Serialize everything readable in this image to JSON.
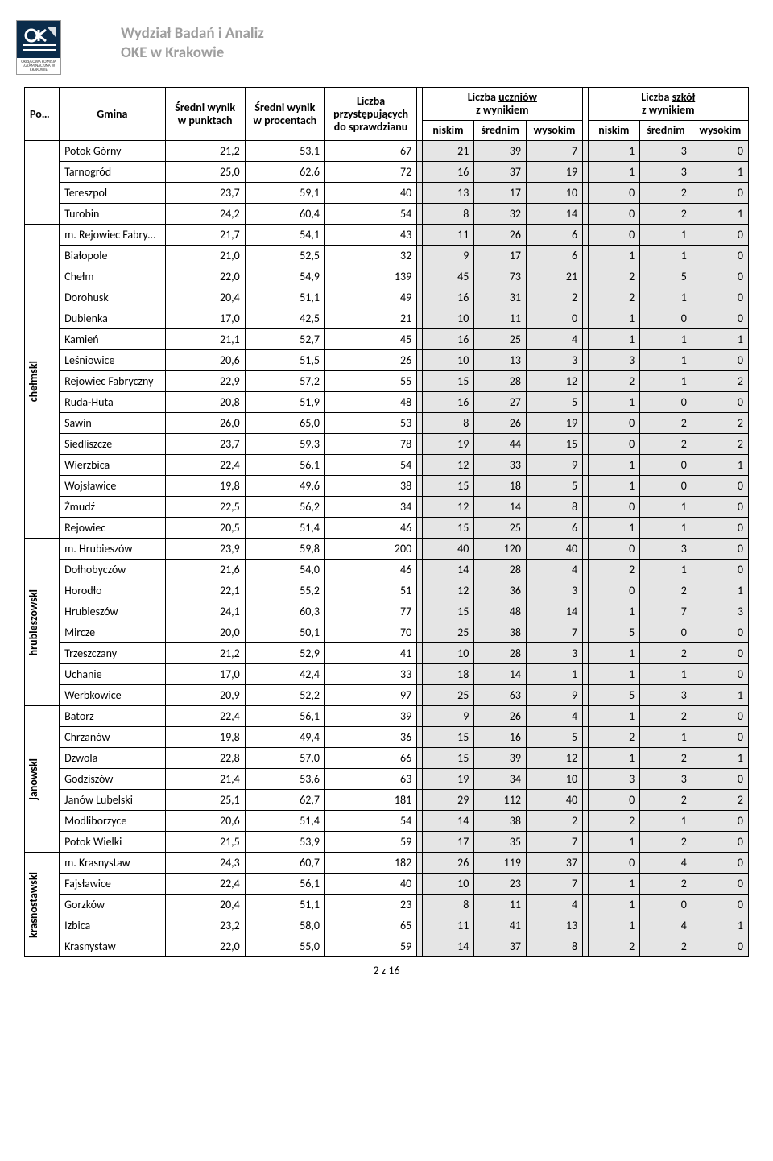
{
  "header": {
    "dept_line1": "Wydział Badań i Analiz",
    "dept_line2": "OKE w Krakowie",
    "logo_caption": "OKRĘGOWA KOMISJA EGZAMINACYJNA W KRAKOWIE"
  },
  "columns": {
    "powiat": "Powiat",
    "gmina": "Gmina",
    "avg_pts": "Średni wynik w punktach",
    "avg_pct": "Średni wynik w procentach",
    "count": "Liczba przystępujących do sprawdzianu",
    "students_group": "Liczba uczniów z wynikiem",
    "schools_group": "Liczba szkół z wynikiem",
    "low": "niskim",
    "mid": "średnim",
    "high": "wysokim"
  },
  "footer": "2 z 16",
  "colors": {
    "gray_bg": "#e5e5e5",
    "header_text_gray": "#9e9e9e",
    "logo_bg": "#0b2c4b"
  },
  "groups": [
    {
      "powiat": "",
      "rows": [
        {
          "gmina": "Potok Górny",
          "pkt": "21,2",
          "pct": "53,1",
          "n": "67",
          "u": [
            "21",
            "39",
            "7"
          ],
          "s": [
            "1",
            "3",
            "0"
          ]
        },
        {
          "gmina": "Tarnogród",
          "pkt": "25,0",
          "pct": "62,6",
          "n": "72",
          "u": [
            "16",
            "37",
            "19"
          ],
          "s": [
            "1",
            "3",
            "1"
          ]
        },
        {
          "gmina": "Tereszpol",
          "pkt": "23,7",
          "pct": "59,1",
          "n": "40",
          "u": [
            "13",
            "17",
            "10"
          ],
          "s": [
            "0",
            "2",
            "0"
          ]
        },
        {
          "gmina": "Turobin",
          "pkt": "24,2",
          "pct": "60,4",
          "n": "54",
          "u": [
            "8",
            "32",
            "14"
          ],
          "s": [
            "0",
            "2",
            "1"
          ]
        }
      ]
    },
    {
      "powiat": "chełmski",
      "rows": [
        {
          "gmina": "m. Rejowiec Fabryczny",
          "pkt": "21,7",
          "pct": "54,1",
          "n": "43",
          "u": [
            "11",
            "26",
            "6"
          ],
          "s": [
            "0",
            "1",
            "0"
          ]
        },
        {
          "gmina": "Białopole",
          "pkt": "21,0",
          "pct": "52,5",
          "n": "32",
          "u": [
            "9",
            "17",
            "6"
          ],
          "s": [
            "1",
            "1",
            "0"
          ]
        },
        {
          "gmina": "Chełm",
          "pkt": "22,0",
          "pct": "54,9",
          "n": "139",
          "u": [
            "45",
            "73",
            "21"
          ],
          "s": [
            "2",
            "5",
            "0"
          ]
        },
        {
          "gmina": "Dorohusk",
          "pkt": "20,4",
          "pct": "51,1",
          "n": "49",
          "u": [
            "16",
            "31",
            "2"
          ],
          "s": [
            "2",
            "1",
            "0"
          ]
        },
        {
          "gmina": "Dubienka",
          "pkt": "17,0",
          "pct": "42,5",
          "n": "21",
          "u": [
            "10",
            "11",
            "0"
          ],
          "s": [
            "1",
            "0",
            "0"
          ]
        },
        {
          "gmina": "Kamień",
          "pkt": "21,1",
          "pct": "52,7",
          "n": "45",
          "u": [
            "16",
            "25",
            "4"
          ],
          "s": [
            "1",
            "1",
            "1"
          ]
        },
        {
          "gmina": "Leśniowice",
          "pkt": "20,6",
          "pct": "51,5",
          "n": "26",
          "u": [
            "10",
            "13",
            "3"
          ],
          "s": [
            "3",
            "1",
            "0"
          ]
        },
        {
          "gmina": "Rejowiec Fabryczny",
          "pkt": "22,9",
          "pct": "57,2",
          "n": "55",
          "u": [
            "15",
            "28",
            "12"
          ],
          "s": [
            "2",
            "1",
            "2"
          ]
        },
        {
          "gmina": "Ruda-Huta",
          "pkt": "20,8",
          "pct": "51,9",
          "n": "48",
          "u": [
            "16",
            "27",
            "5"
          ],
          "s": [
            "1",
            "0",
            "0"
          ]
        },
        {
          "gmina": "Sawin",
          "pkt": "26,0",
          "pct": "65,0",
          "n": "53",
          "u": [
            "8",
            "26",
            "19"
          ],
          "s": [
            "0",
            "2",
            "2"
          ]
        },
        {
          "gmina": "Siedliszcze",
          "pkt": "23,7",
          "pct": "59,3",
          "n": "78",
          "u": [
            "19",
            "44",
            "15"
          ],
          "s": [
            "0",
            "2",
            "2"
          ]
        },
        {
          "gmina": "Wierzbica",
          "pkt": "22,4",
          "pct": "56,1",
          "n": "54",
          "u": [
            "12",
            "33",
            "9"
          ],
          "s": [
            "1",
            "0",
            "1"
          ]
        },
        {
          "gmina": "Wojsławice",
          "pkt": "19,8",
          "pct": "49,6",
          "n": "38",
          "u": [
            "15",
            "18",
            "5"
          ],
          "s": [
            "1",
            "0",
            "0"
          ]
        },
        {
          "gmina": "Żmudź",
          "pkt": "22,5",
          "pct": "56,2",
          "n": "34",
          "u": [
            "12",
            "14",
            "8"
          ],
          "s": [
            "0",
            "1",
            "0"
          ]
        },
        {
          "gmina": "Rejowiec",
          "pkt": "20,5",
          "pct": "51,4",
          "n": "46",
          "u": [
            "15",
            "25",
            "6"
          ],
          "s": [
            "1",
            "1",
            "0"
          ]
        }
      ]
    },
    {
      "powiat": "hrubieszowski",
      "rows": [
        {
          "gmina": "m. Hrubieszów",
          "pkt": "23,9",
          "pct": "59,8",
          "n": "200",
          "u": [
            "40",
            "120",
            "40"
          ],
          "s": [
            "0",
            "3",
            "0"
          ]
        },
        {
          "gmina": "Dołhobyczów",
          "pkt": "21,6",
          "pct": "54,0",
          "n": "46",
          "u": [
            "14",
            "28",
            "4"
          ],
          "s": [
            "2",
            "1",
            "0"
          ]
        },
        {
          "gmina": "Horodło",
          "pkt": "22,1",
          "pct": "55,2",
          "n": "51",
          "u": [
            "12",
            "36",
            "3"
          ],
          "s": [
            "0",
            "2",
            "1"
          ]
        },
        {
          "gmina": "Hrubieszów",
          "pkt": "24,1",
          "pct": "60,3",
          "n": "77",
          "u": [
            "15",
            "48",
            "14"
          ],
          "s": [
            "1",
            "7",
            "3"
          ]
        },
        {
          "gmina": "Mircze",
          "pkt": "20,0",
          "pct": "50,1",
          "n": "70",
          "u": [
            "25",
            "38",
            "7"
          ],
          "s": [
            "5",
            "0",
            "0"
          ]
        },
        {
          "gmina": "Trzeszczany",
          "pkt": "21,2",
          "pct": "52,9",
          "n": "41",
          "u": [
            "10",
            "28",
            "3"
          ],
          "s": [
            "1",
            "2",
            "0"
          ]
        },
        {
          "gmina": "Uchanie",
          "pkt": "17,0",
          "pct": "42,4",
          "n": "33",
          "u": [
            "18",
            "14",
            "1"
          ],
          "s": [
            "1",
            "1",
            "0"
          ]
        },
        {
          "gmina": "Werbkowice",
          "pkt": "20,9",
          "pct": "52,2",
          "n": "97",
          "u": [
            "25",
            "63",
            "9"
          ],
          "s": [
            "5",
            "3",
            "1"
          ]
        }
      ]
    },
    {
      "powiat": "janowski",
      "rows": [
        {
          "gmina": "Batorz",
          "pkt": "22,4",
          "pct": "56,1",
          "n": "39",
          "u": [
            "9",
            "26",
            "4"
          ],
          "s": [
            "1",
            "2",
            "0"
          ]
        },
        {
          "gmina": "Chrzanów",
          "pkt": "19,8",
          "pct": "49,4",
          "n": "36",
          "u": [
            "15",
            "16",
            "5"
          ],
          "s": [
            "2",
            "1",
            "0"
          ]
        },
        {
          "gmina": "Dzwola",
          "pkt": "22,8",
          "pct": "57,0",
          "n": "66",
          "u": [
            "15",
            "39",
            "12"
          ],
          "s": [
            "1",
            "2",
            "1"
          ]
        },
        {
          "gmina": "Godziszów",
          "pkt": "21,4",
          "pct": "53,6",
          "n": "63",
          "u": [
            "19",
            "34",
            "10"
          ],
          "s": [
            "3",
            "3",
            "0"
          ]
        },
        {
          "gmina": "Janów Lubelski",
          "pkt": "25,1",
          "pct": "62,7",
          "n": "181",
          "u": [
            "29",
            "112",
            "40"
          ],
          "s": [
            "0",
            "2",
            "2"
          ]
        },
        {
          "gmina": "Modliborzyce",
          "pkt": "20,6",
          "pct": "51,4",
          "n": "54",
          "u": [
            "14",
            "38",
            "2"
          ],
          "s": [
            "2",
            "1",
            "0"
          ]
        },
        {
          "gmina": "Potok Wielki",
          "pkt": "21,5",
          "pct": "53,9",
          "n": "59",
          "u": [
            "17",
            "35",
            "7"
          ],
          "s": [
            "1",
            "2",
            "0"
          ]
        }
      ]
    },
    {
      "powiat": "krasnostawski",
      "rows": [
        {
          "gmina": "m. Krasnystaw",
          "pkt": "24,3",
          "pct": "60,7",
          "n": "182",
          "u": [
            "26",
            "119",
            "37"
          ],
          "s": [
            "0",
            "4",
            "0"
          ]
        },
        {
          "gmina": "Fajsławice",
          "pkt": "22,4",
          "pct": "56,1",
          "n": "40",
          "u": [
            "10",
            "23",
            "7"
          ],
          "s": [
            "1",
            "2",
            "0"
          ]
        },
        {
          "gmina": "Gorzków",
          "pkt": "20,4",
          "pct": "51,1",
          "n": "23",
          "u": [
            "8",
            "11",
            "4"
          ],
          "s": [
            "1",
            "0",
            "0"
          ]
        },
        {
          "gmina": "Izbica",
          "pkt": "23,2",
          "pct": "58,0",
          "n": "65",
          "u": [
            "11",
            "41",
            "13"
          ],
          "s": [
            "1",
            "4",
            "1"
          ]
        },
        {
          "gmina": "Krasnystaw",
          "pkt": "22,0",
          "pct": "55,0",
          "n": "59",
          "u": [
            "14",
            "37",
            "8"
          ],
          "s": [
            "2",
            "2",
            "0"
          ]
        }
      ]
    }
  ]
}
